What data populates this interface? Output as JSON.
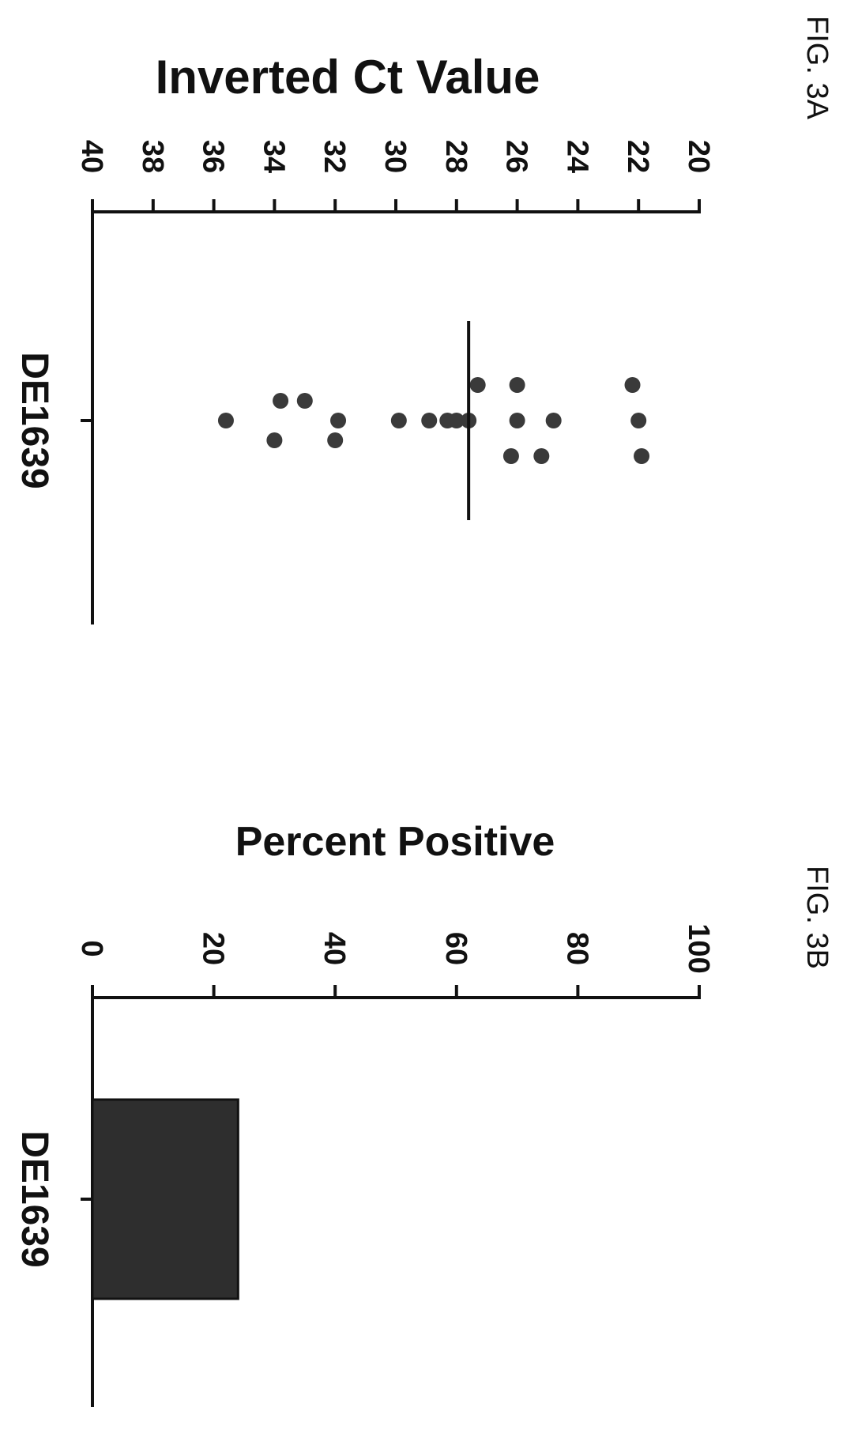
{
  "chart_data": [
    {
      "type": "scatter",
      "figure_label": "FIG. 3A",
      "title": "",
      "ylabel": "Inverted Ct Value",
      "xlabel": "",
      "ylim": [
        40,
        20
      ],
      "y_ticks": [
        "40",
        "38",
        "36",
        "34",
        "32",
        "30",
        "28",
        "26",
        "24",
        "22",
        "20"
      ],
      "categories": [
        "DE1639"
      ],
      "median": 27.6,
      "series": [
        {
          "category": "DE1639",
          "values": [
            35.6,
            33.8,
            34.0,
            33.0,
            32.0,
            31.9,
            29.9,
            28.9,
            28.3,
            28.0,
            27.6,
            27.3,
            26.2,
            26.0,
            26.0,
            25.2,
            24.8,
            22.2,
            22.0,
            21.9
          ]
        }
      ]
    },
    {
      "type": "bar",
      "figure_label": "FIG. 3B",
      "title": "",
      "ylabel": "Percent Positive",
      "xlabel": "",
      "ylim": [
        0,
        100
      ],
      "y_ticks": [
        "0",
        "20",
        "40",
        "60",
        "80",
        "100"
      ],
      "categories": [
        "DE1639"
      ],
      "values": [
        24
      ]
    }
  ]
}
